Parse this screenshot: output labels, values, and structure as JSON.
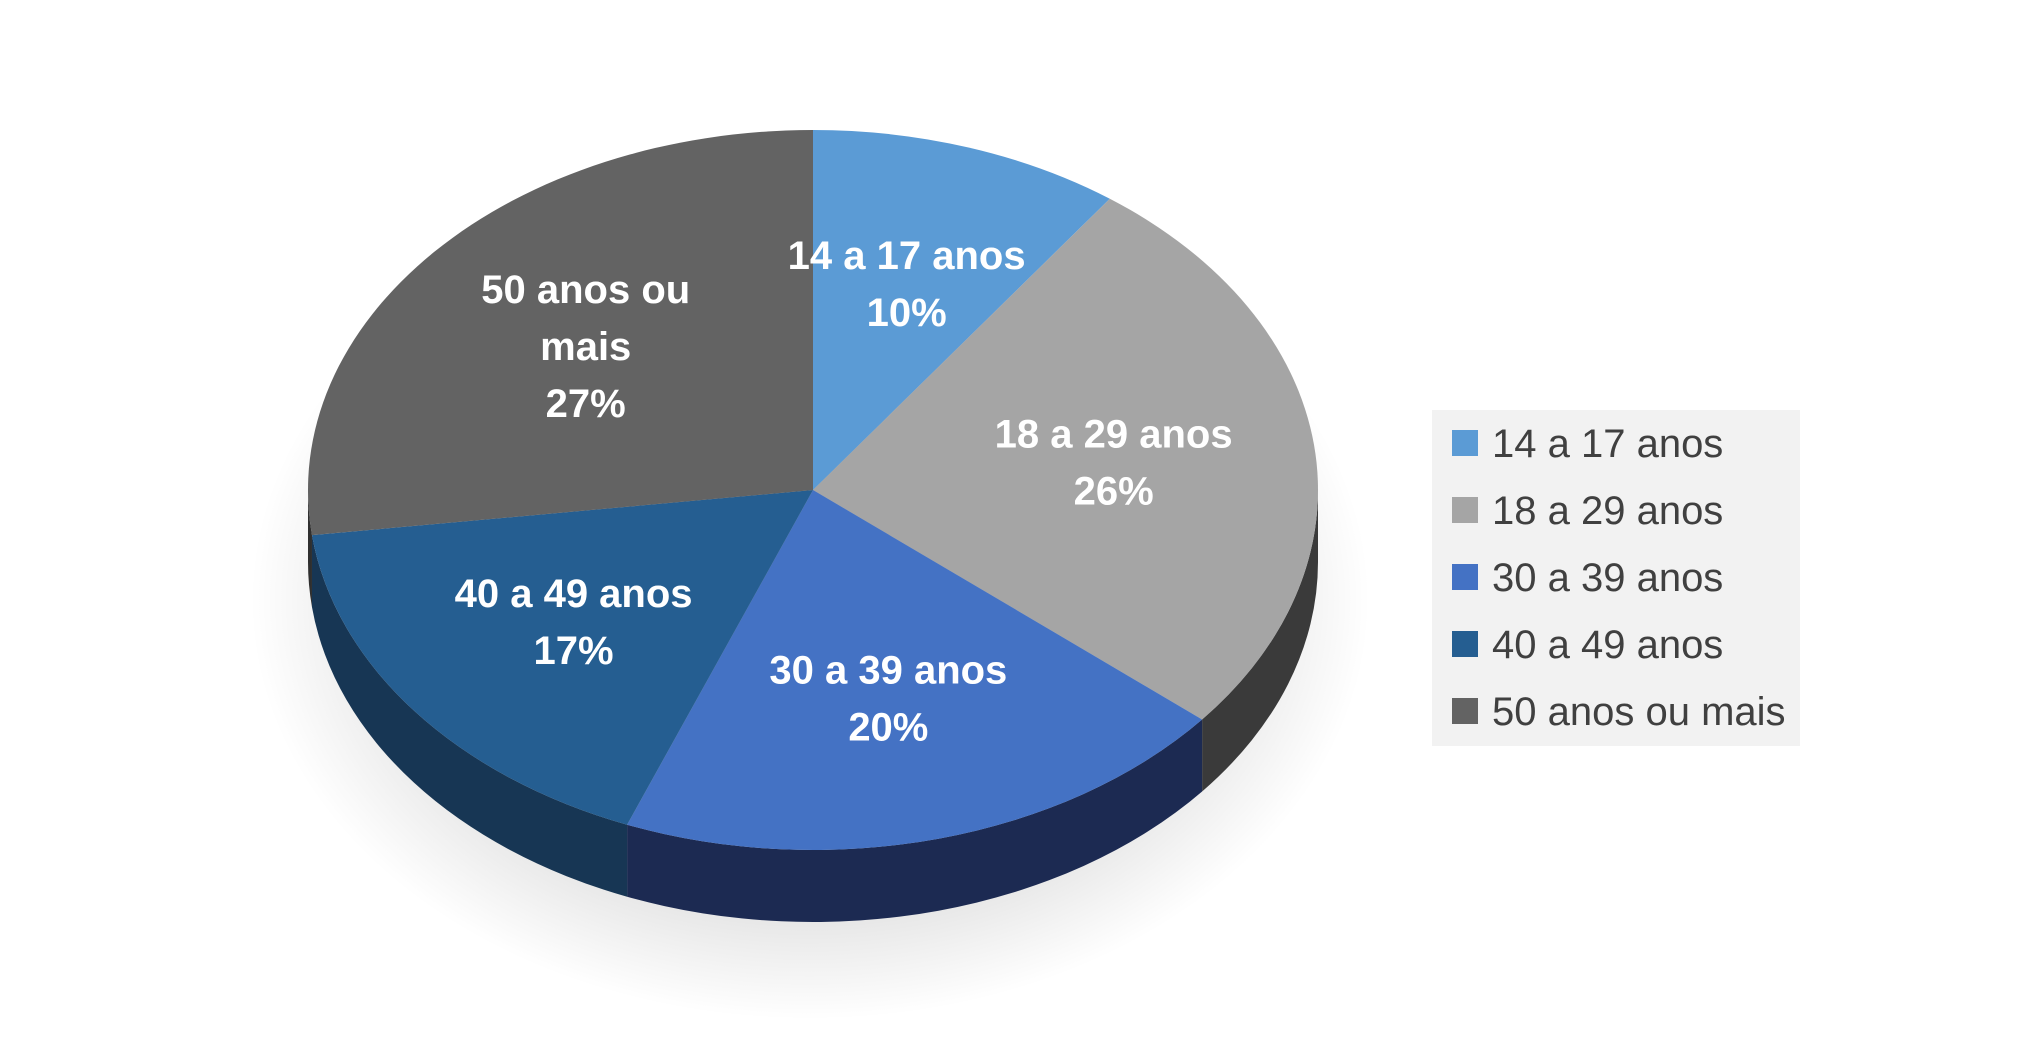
{
  "chart_data": {
    "type": "pie",
    "title": "",
    "categories": [
      "14 a 17 anos",
      "18 a 29 anos",
      "30 a 39 anos",
      "40 a 49 anos",
      "50 anos ou mais"
    ],
    "values": [
      10,
      26,
      20,
      17,
      27
    ],
    "labels": [
      {
        "lines": [
          "14 a 17 anos"
        ],
        "percent": "10%"
      },
      {
        "lines": [
          "18 a 29 anos"
        ],
        "percent": "26%"
      },
      {
        "lines": [
          "30 a 39 anos"
        ],
        "percent": "20%"
      },
      {
        "lines": [
          "40 a 49 anos"
        ],
        "percent": "17%"
      },
      {
        "lines": [
          "50 anos ou",
          "mais"
        ],
        "percent": "27%"
      }
    ],
    "colors": [
      "#5b9bd5",
      "#a5a5a5",
      "#4472c4",
      "#255e91",
      "#636363"
    ],
    "side_colors": [
      "#3f6f99",
      "#3a3a3a",
      "#1c2a52",
      "#173654",
      "#2f2f2f"
    ],
    "legend_position": "right",
    "style": "3d"
  }
}
